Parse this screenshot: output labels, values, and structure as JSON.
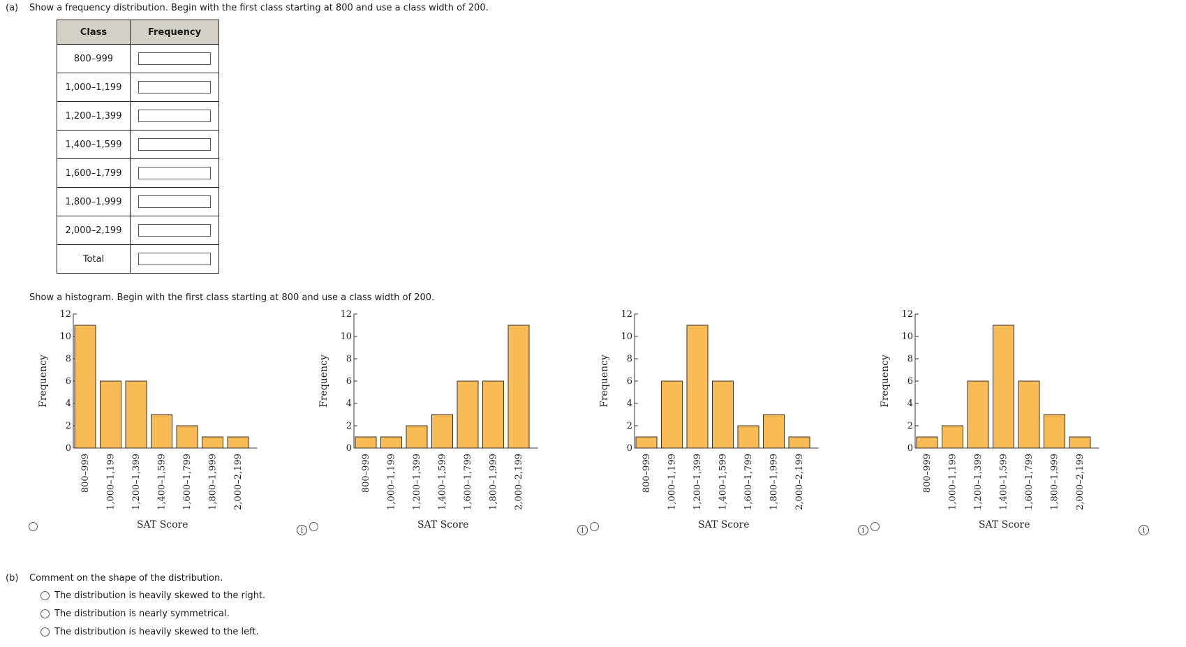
{
  "part_a": {
    "label": "(a)",
    "prompt": "Show a frequency distribution. Begin with the first class starting at 800 and use a class width of 200.",
    "table": {
      "headers": [
        "Class",
        "Frequency"
      ],
      "rows": [
        "800–999",
        "1,000–1,199",
        "1,200–1,399",
        "1,400–1,599",
        "1,600–1,799",
        "1,800–1,999",
        "2,000–2,199"
      ],
      "total_label": "Total"
    },
    "histogram_prompt": "Show a histogram. Begin with the first class starting at 800 and use a class width of 200."
  },
  "chart_data": [
    {
      "type": "bar",
      "categories": [
        "800–999",
        "1,000–1,199",
        "1,200–1,399",
        "1,400–1,599",
        "1,600–1,799",
        "1,800–1,999",
        "2,000–2,199"
      ],
      "values": [
        11,
        6,
        6,
        3,
        2,
        1,
        1
      ],
      "xlabel": "SAT Score",
      "ylabel": "Frequency",
      "ylim": [
        0,
        12
      ],
      "yticks": [
        0,
        2,
        4,
        6,
        8,
        10,
        12
      ],
      "bar_color": "#f9bb55"
    },
    {
      "type": "bar",
      "categories": [
        "800–999",
        "1,000–1,199",
        "1,200–1,399",
        "1,400–1,599",
        "1,600–1,799",
        "1,800–1,999",
        "2,000–2,199"
      ],
      "values": [
        1,
        1,
        2,
        3,
        6,
        6,
        11
      ],
      "xlabel": "SAT Score",
      "ylabel": "Frequency",
      "ylim": [
        0,
        12
      ],
      "yticks": [
        0,
        2,
        4,
        6,
        8,
        10,
        12
      ],
      "bar_color": "#f9bb55"
    },
    {
      "type": "bar",
      "categories": [
        "800–999",
        "1,000–1,199",
        "1,200–1,399",
        "1,400–1,599",
        "1,600–1,799",
        "1,800–1,999",
        "2,000–2,199"
      ],
      "values": [
        1,
        6,
        11,
        6,
        2,
        3,
        1
      ],
      "xlabel": "SAT Score",
      "ylabel": "Frequency",
      "ylim": [
        0,
        12
      ],
      "yticks": [
        0,
        2,
        4,
        6,
        8,
        10,
        12
      ],
      "bar_color": "#f9bb55"
    },
    {
      "type": "bar",
      "categories": [
        "800–999",
        "1,000–1,199",
        "1,200–1,399",
        "1,400–1,599",
        "1,600–1,799",
        "1,800–1,999",
        "2,000–2,199"
      ],
      "values": [
        1,
        2,
        6,
        11,
        6,
        3,
        1
      ],
      "xlabel": "SAT Score",
      "ylabel": "Frequency",
      "ylim": [
        0,
        12
      ],
      "yticks": [
        0,
        2,
        4,
        6,
        8,
        10,
        12
      ],
      "bar_color": "#f9bb55"
    }
  ],
  "info_icon_glyph": "i",
  "part_b": {
    "label": "(b)",
    "prompt": "Comment on the shape of the distribution.",
    "options": [
      "The distribution is heavily skewed to the right.",
      "The distribution is nearly symmetrical.",
      "The distribution is heavily skewed to the left."
    ]
  }
}
